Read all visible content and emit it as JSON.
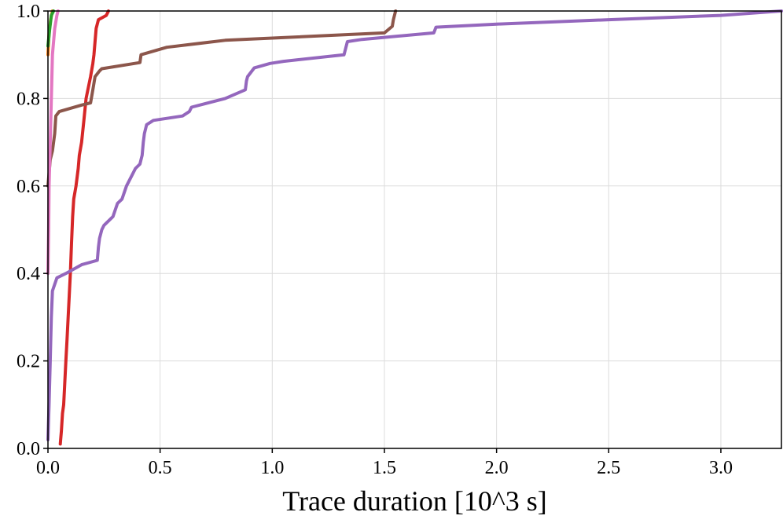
{
  "chart_data": {
    "type": "line",
    "title": "",
    "xlabel": "Trace duration [10^3 s]",
    "ylabel": "",
    "xlim": [
      0,
      3.27
    ],
    "ylim": [
      0,
      1.0
    ],
    "grid": true,
    "xticks": [
      0.0,
      0.5,
      1.0,
      1.5,
      2.0,
      2.5,
      3.0
    ],
    "xtick_labels": [
      "0.0",
      "0.5",
      "1.0",
      "1.5",
      "2.0",
      "2.5",
      "3.0"
    ],
    "yticks": [
      0.0,
      0.2,
      0.4,
      0.6,
      0.8,
      1.0
    ],
    "ytick_labels": [
      "0.0",
      "0.2",
      "0.4",
      "0.6",
      "0.8",
      "1.0"
    ],
    "series": [
      {
        "name": "orange",
        "color": "#ff7f0e",
        "points": [
          [
            0.0,
            0.9
          ],
          [
            0.005,
            0.95
          ],
          [
            0.012,
            0.98
          ],
          [
            0.02,
            1.0
          ]
        ]
      },
      {
        "name": "green",
        "color": "#2ca02c",
        "points": [
          [
            0.0,
            0.92
          ],
          [
            0.008,
            0.96
          ],
          [
            0.015,
            0.99
          ],
          [
            0.025,
            1.0
          ]
        ]
      },
      {
        "name": "red",
        "color": "#d62728",
        "points": [
          [
            0.055,
            0.01
          ],
          [
            0.06,
            0.04
          ],
          [
            0.065,
            0.08
          ],
          [
            0.07,
            0.1
          ],
          [
            0.075,
            0.15
          ],
          [
            0.08,
            0.2
          ],
          [
            0.085,
            0.25
          ],
          [
            0.09,
            0.3
          ],
          [
            0.095,
            0.35
          ],
          [
            0.1,
            0.4
          ],
          [
            0.105,
            0.47
          ],
          [
            0.11,
            0.53
          ],
          [
            0.115,
            0.57
          ],
          [
            0.125,
            0.6
          ],
          [
            0.135,
            0.64
          ],
          [
            0.14,
            0.67
          ],
          [
            0.15,
            0.7
          ],
          [
            0.16,
            0.75
          ],
          [
            0.17,
            0.8
          ],
          [
            0.19,
            0.85
          ],
          [
            0.2,
            0.88
          ],
          [
            0.205,
            0.9
          ],
          [
            0.21,
            0.93
          ],
          [
            0.215,
            0.96
          ],
          [
            0.225,
            0.98
          ],
          [
            0.26,
            0.99
          ],
          [
            0.27,
            1.0
          ]
        ]
      },
      {
        "name": "purple",
        "color": "#9467bd",
        "points": [
          [
            0.0,
            0.02
          ],
          [
            0.005,
            0.1
          ],
          [
            0.01,
            0.2
          ],
          [
            0.015,
            0.3
          ],
          [
            0.02,
            0.36
          ],
          [
            0.04,
            0.39
          ],
          [
            0.08,
            0.4
          ],
          [
            0.15,
            0.42
          ],
          [
            0.22,
            0.43
          ],
          [
            0.225,
            0.46
          ],
          [
            0.23,
            0.48
          ],
          [
            0.24,
            0.5
          ],
          [
            0.25,
            0.51
          ],
          [
            0.29,
            0.53
          ],
          [
            0.31,
            0.56
          ],
          [
            0.33,
            0.57
          ],
          [
            0.35,
            0.6
          ],
          [
            0.37,
            0.62
          ],
          [
            0.39,
            0.64
          ],
          [
            0.41,
            0.65
          ],
          [
            0.42,
            0.67
          ],
          [
            0.425,
            0.7
          ],
          [
            0.43,
            0.72
          ],
          [
            0.44,
            0.74
          ],
          [
            0.47,
            0.75
          ],
          [
            0.6,
            0.76
          ],
          [
            0.63,
            0.77
          ],
          [
            0.64,
            0.78
          ],
          [
            0.79,
            0.8
          ],
          [
            0.88,
            0.82
          ],
          [
            0.885,
            0.84
          ],
          [
            0.89,
            0.85
          ],
          [
            0.92,
            0.87
          ],
          [
            0.99,
            0.88
          ],
          [
            1.05,
            0.885
          ],
          [
            1.32,
            0.9
          ],
          [
            1.335,
            0.93
          ],
          [
            1.4,
            0.935
          ],
          [
            1.72,
            0.95
          ],
          [
            1.73,
            0.963
          ],
          [
            2.0,
            0.97
          ],
          [
            2.5,
            0.98
          ],
          [
            3.0,
            0.99
          ],
          [
            3.27,
            1.0
          ]
        ]
      },
      {
        "name": "brown",
        "color": "#8c564b",
        "points": [
          [
            0.0,
            0.6
          ],
          [
            0.01,
            0.66
          ],
          [
            0.02,
            0.68
          ],
          [
            0.03,
            0.72
          ],
          [
            0.035,
            0.76
          ],
          [
            0.05,
            0.77
          ],
          [
            0.15,
            0.785
          ],
          [
            0.19,
            0.79
          ],
          [
            0.2,
            0.82
          ],
          [
            0.21,
            0.85
          ],
          [
            0.215,
            0.853
          ],
          [
            0.23,
            0.863
          ],
          [
            0.24,
            0.868
          ],
          [
            0.41,
            0.882
          ],
          [
            0.415,
            0.9
          ],
          [
            0.53,
            0.917
          ],
          [
            0.79,
            0.933
          ],
          [
            1.5,
            0.95
          ],
          [
            1.535,
            0.965
          ],
          [
            1.54,
            0.98
          ],
          [
            1.55,
            1.0
          ]
        ]
      },
      {
        "name": "pink",
        "color": "#e377c2",
        "points": [
          [
            0.0,
            0.4
          ],
          [
            0.003,
            0.5
          ],
          [
            0.005,
            0.6
          ],
          [
            0.01,
            0.7
          ],
          [
            0.015,
            0.8
          ],
          [
            0.02,
            0.9
          ],
          [
            0.03,
            0.96
          ],
          [
            0.04,
            0.99
          ],
          [
            0.045,
            1.0
          ]
        ]
      }
    ]
  }
}
